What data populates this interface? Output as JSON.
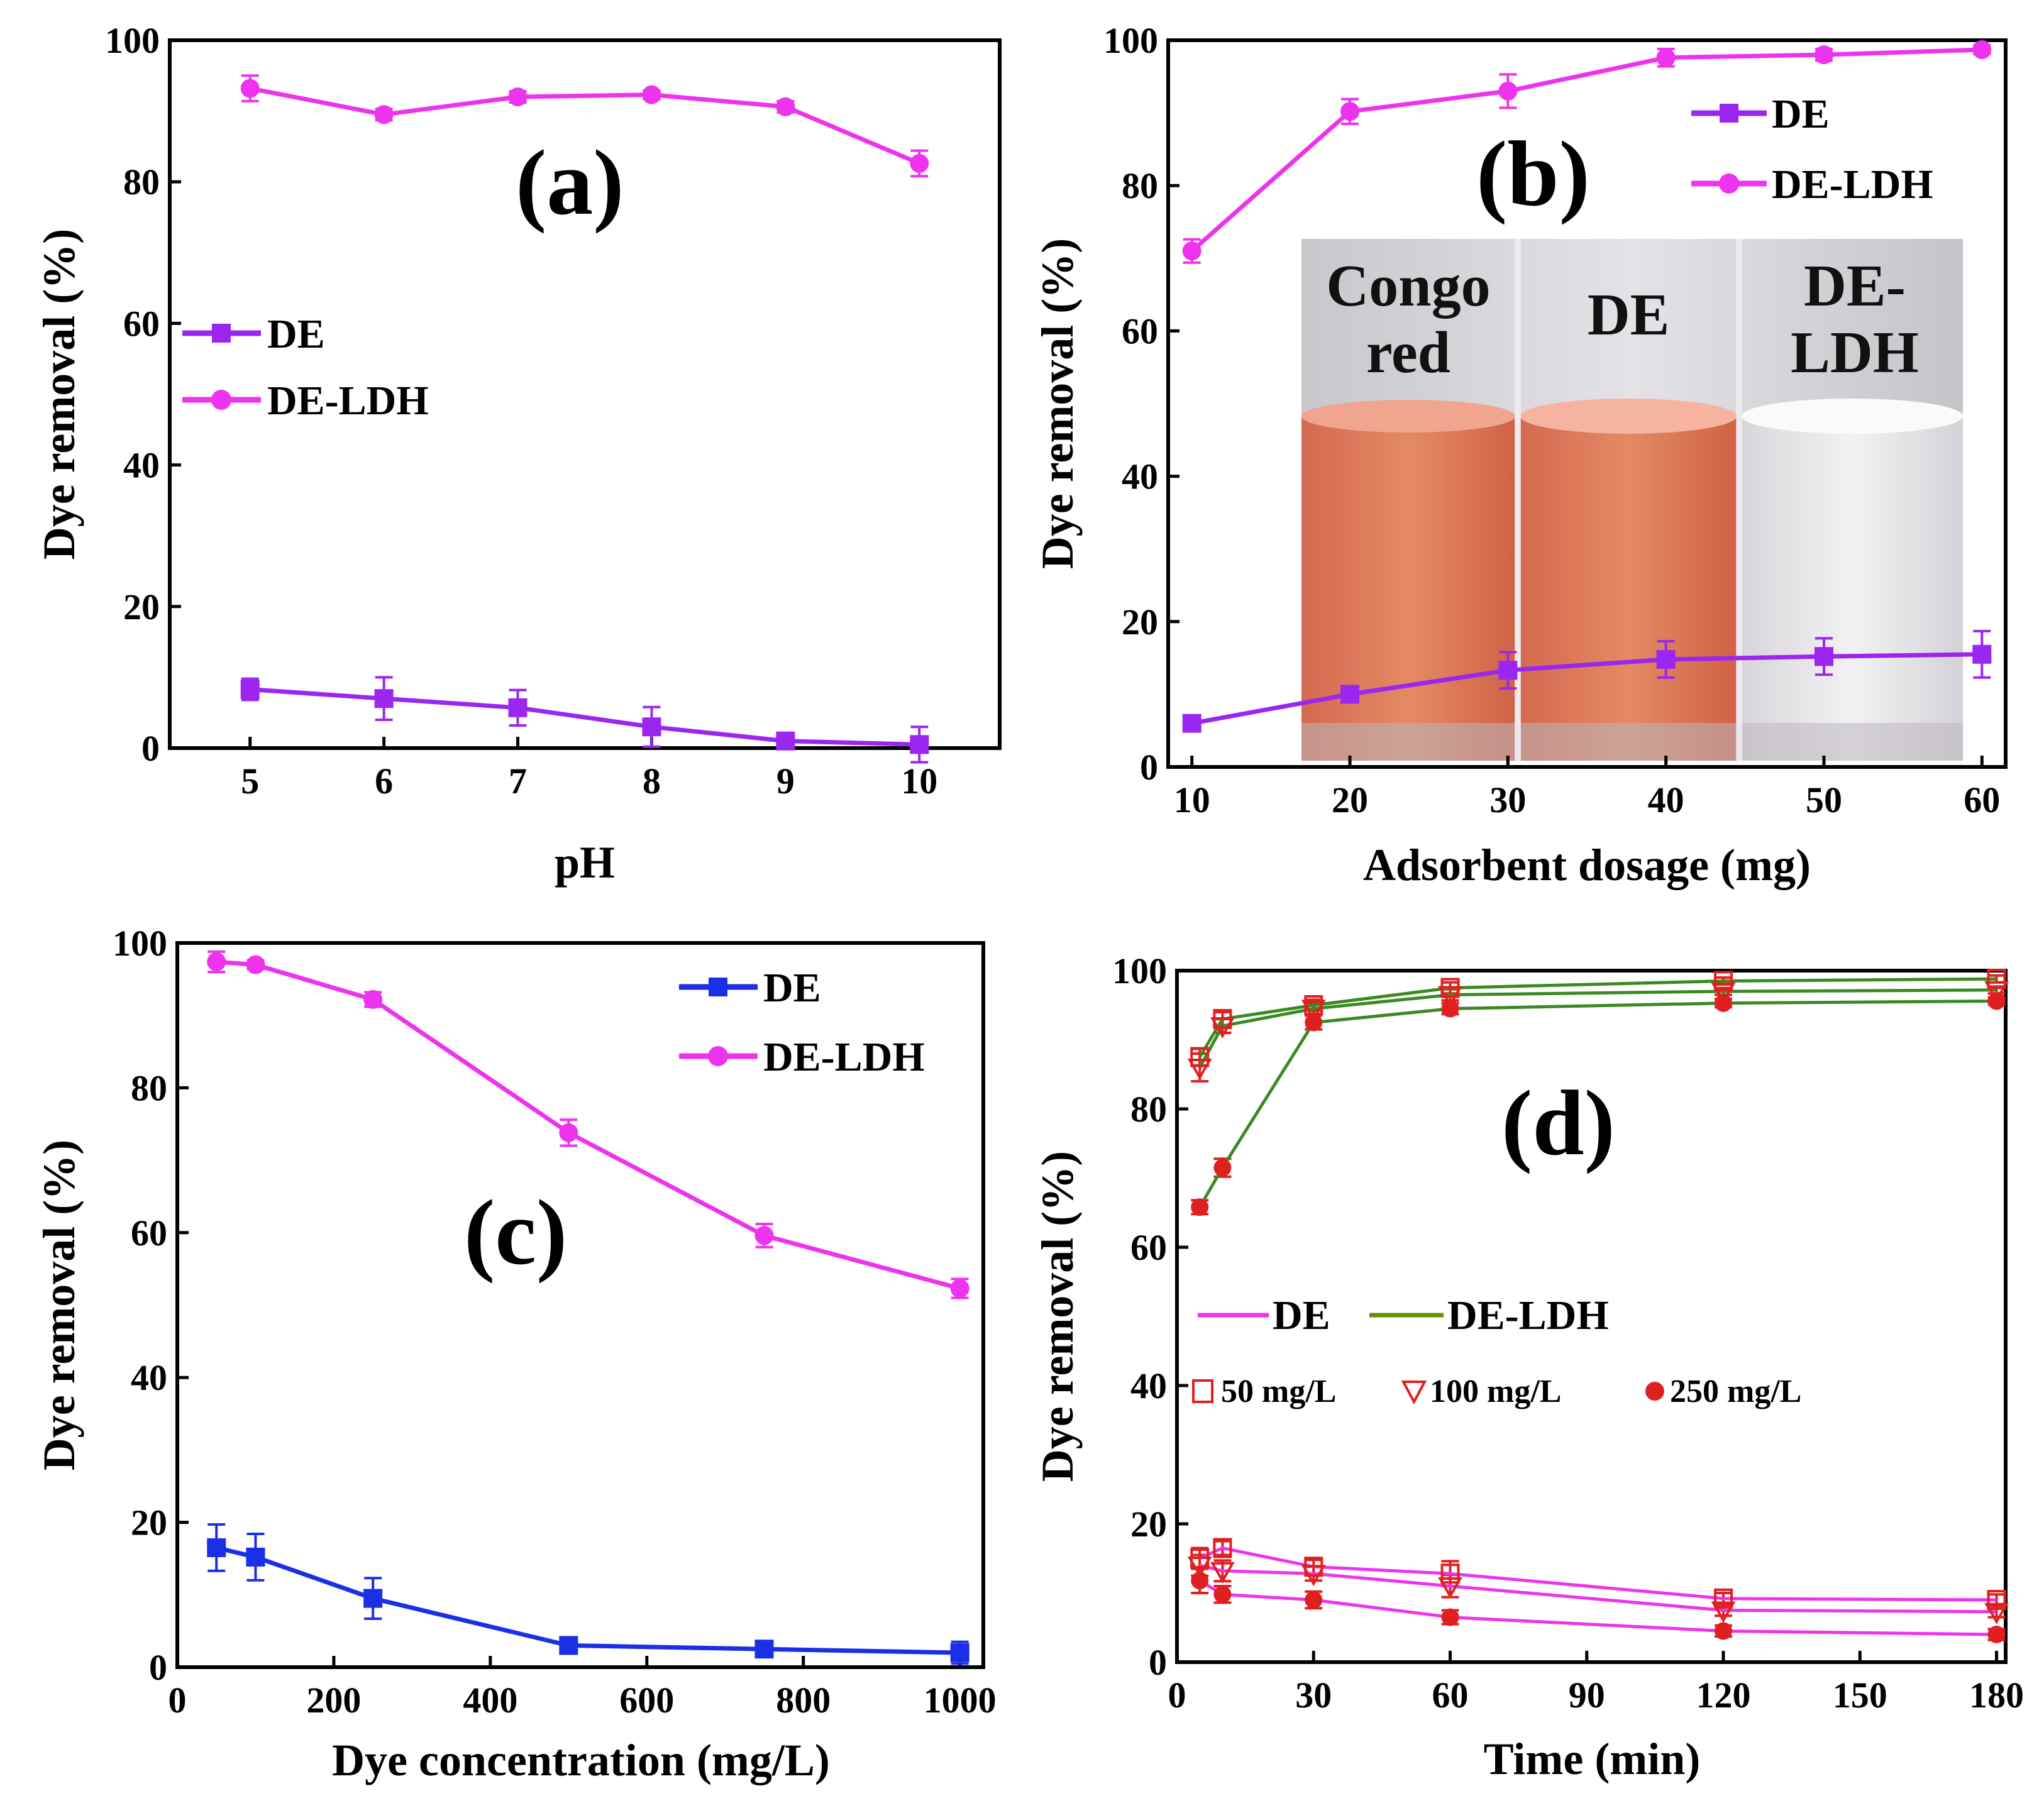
{
  "chart_data": [
    {
      "panel": "a",
      "type": "line",
      "label": "(a)",
      "xlabel": "pH",
      "ylabel": "Dye removal (%)",
      "xlim": [
        4.4,
        10.6
      ],
      "ylim": [
        0,
        100
      ],
      "xticks": [
        "5",
        "6",
        "7",
        "8",
        "9",
        "10"
      ],
      "yticks": [
        "0",
        "20",
        "40",
        "60",
        "80",
        "100"
      ],
      "x": [
        5,
        6,
        7,
        8,
        9,
        10
      ],
      "series": [
        {
          "name": "DE",
          "color": "#9b26f0",
          "marker": "square",
          "values": [
            8.3,
            7.0,
            5.7,
            3.0,
            1.0,
            0.5
          ],
          "errors": [
            1.5,
            3.0,
            2.5,
            2.8,
            1.0,
            2.5
          ]
        },
        {
          "name": "DE-LDH",
          "color": "#ee33ee",
          "marker": "circle",
          "values": [
            93.2,
            89.5,
            92.0,
            92.3,
            90.6,
            82.6
          ],
          "errors": [
            1.8,
            0.8,
            0.8,
            0.6,
            0.8,
            1.8
          ]
        }
      ]
    },
    {
      "panel": "b",
      "type": "line",
      "label": "(b)",
      "xlabel": "Adsorbent dosage (mg)",
      "ylabel": "Dye removal (%)",
      "xlim": [
        8.5,
        61.5
      ],
      "ylim": [
        0,
        100
      ],
      "xticks": [
        "10",
        "20",
        "30",
        "40",
        "50",
        "60"
      ],
      "yticks": [
        "0",
        "20",
        "40",
        "60",
        "80",
        "100"
      ],
      "x": [
        10,
        20,
        30,
        40,
        50,
        60
      ],
      "series": [
        {
          "name": "DE",
          "color": "#9b26f0",
          "marker": "square",
          "values": [
            6.0,
            10.0,
            13.3,
            14.8,
            15.2,
            15.5
          ],
          "errors": [
            0.6,
            1.0,
            2.5,
            2.5,
            2.5,
            3.2
          ]
        },
        {
          "name": "DE-LDH",
          "color": "#ee33ee",
          "marker": "circle",
          "values": [
            71.0,
            90.2,
            93.0,
            97.6,
            98.0,
            98.7
          ],
          "errors": [
            1.6,
            1.7,
            2.3,
            1.2,
            0.8,
            0.6
          ]
        }
      ],
      "inset_labels": [
        "Congo red",
        "DE",
        "DE-LDH"
      ]
    },
    {
      "panel": "c",
      "type": "line",
      "label": "(c)",
      "xlabel": "Dye concentration (mg/L)",
      "ylabel": "Dye removal (%)",
      "xlim": [
        0,
        1030
      ],
      "ylim": [
        0,
        100
      ],
      "xticks": [
        "0",
        "200",
        "400",
        "600",
        "800",
        "1000"
      ],
      "yticks": [
        "0",
        "20",
        "40",
        "60",
        "80",
        "100"
      ],
      "x": [
        50,
        100,
        250,
        500,
        750,
        1000
      ],
      "series": [
        {
          "name": "DE",
          "color": "#1a2fe6",
          "marker": "square",
          "values": [
            16.5,
            15.2,
            9.5,
            3.0,
            2.5,
            2.0
          ],
          "errors": [
            3.2,
            3.2,
            2.8,
            1.0,
            1.0,
            1.5
          ]
        },
        {
          "name": "DE-LDH",
          "color": "#ee33ee",
          "marker": "circle",
          "values": [
            97.4,
            97.0,
            92.2,
            73.8,
            59.6,
            52.3
          ],
          "errors": [
            1.4,
            0.6,
            1.0,
            1.8,
            1.6,
            1.3
          ]
        }
      ]
    },
    {
      "panel": "d",
      "type": "line",
      "label": "(d)",
      "xlabel": "Time (min)",
      "ylabel": "Dye removal (%)",
      "xlim": [
        0,
        182
      ],
      "ylim": [
        0,
        100
      ],
      "xticks": [
        "0",
        "30",
        "60",
        "90",
        "120",
        "150",
        "180"
      ],
      "yticks": [
        "0",
        "20",
        "40",
        "60",
        "80",
        "100"
      ],
      "x": [
        5,
        10,
        30,
        60,
        120,
        180
      ],
      "legend_lines": [
        {
          "name": "DE",
          "color": "#ee33ee"
        },
        {
          "name": "DE-LDH",
          "color": "#6b8e00"
        }
      ],
      "legend_markers": [
        {
          "name": "50 mg/L",
          "marker": "open-square"
        },
        {
          "name": "100 mg/L",
          "marker": "open-triangle-down"
        },
        {
          "name": "250 mg/L",
          "marker": "filled-circle"
        }
      ],
      "series": [
        {
          "name": "DE-LDH 50 mg/L",
          "color": "#3a8a22",
          "marker": "open-square",
          "values": [
            87.5,
            93.0,
            95.0,
            97.5,
            98.5,
            98.8
          ],
          "errors": [
            1.2,
            1.0,
            0.8,
            0.8,
            0.5,
            0.5
          ]
        },
        {
          "name": "DE-LDH 100 mg/L",
          "color": "#3a8a22",
          "marker": "open-triangle-down",
          "values": [
            86.0,
            92.0,
            94.5,
            96.5,
            97.0,
            97.2
          ],
          "errors": [
            2.0,
            1.0,
            0.8,
            0.8,
            0.5,
            0.5
          ]
        },
        {
          "name": "DE-LDH 250 mg/L",
          "color": "#3a8a22",
          "marker": "filled-circle",
          "values": [
            65.8,
            71.5,
            92.5,
            94.5,
            95.3,
            95.6
          ],
          "errors": [
            1.0,
            1.3,
            1.0,
            0.8,
            0.6,
            0.5
          ]
        },
        {
          "name": "DE 50 mg/L",
          "color": "#ee33ee",
          "marker": "open-square",
          "values": [
            15.0,
            16.5,
            13.8,
            12.8,
            9.2,
            9.0
          ],
          "errors": [
            1.5,
            1.0,
            1.0,
            1.8,
            0.8,
            0.8
          ]
        },
        {
          "name": "DE 100 mg/L",
          "color": "#ee33ee",
          "marker": "open-triangle-down",
          "values": [
            14.0,
            13.2,
            12.8,
            11.0,
            7.5,
            7.3
          ],
          "errors": [
            1.5,
            1.5,
            1.0,
            1.6,
            0.8,
            0.8
          ]
        },
        {
          "name": "DE 250 mg/L",
          "color": "#ee33ee",
          "marker": "filled-circle",
          "values": [
            11.8,
            9.8,
            9.0,
            6.5,
            4.5,
            4.0
          ],
          "errors": [
            1.8,
            1.2,
            1.2,
            1.0,
            0.8,
            0.8
          ]
        }
      ]
    }
  ]
}
